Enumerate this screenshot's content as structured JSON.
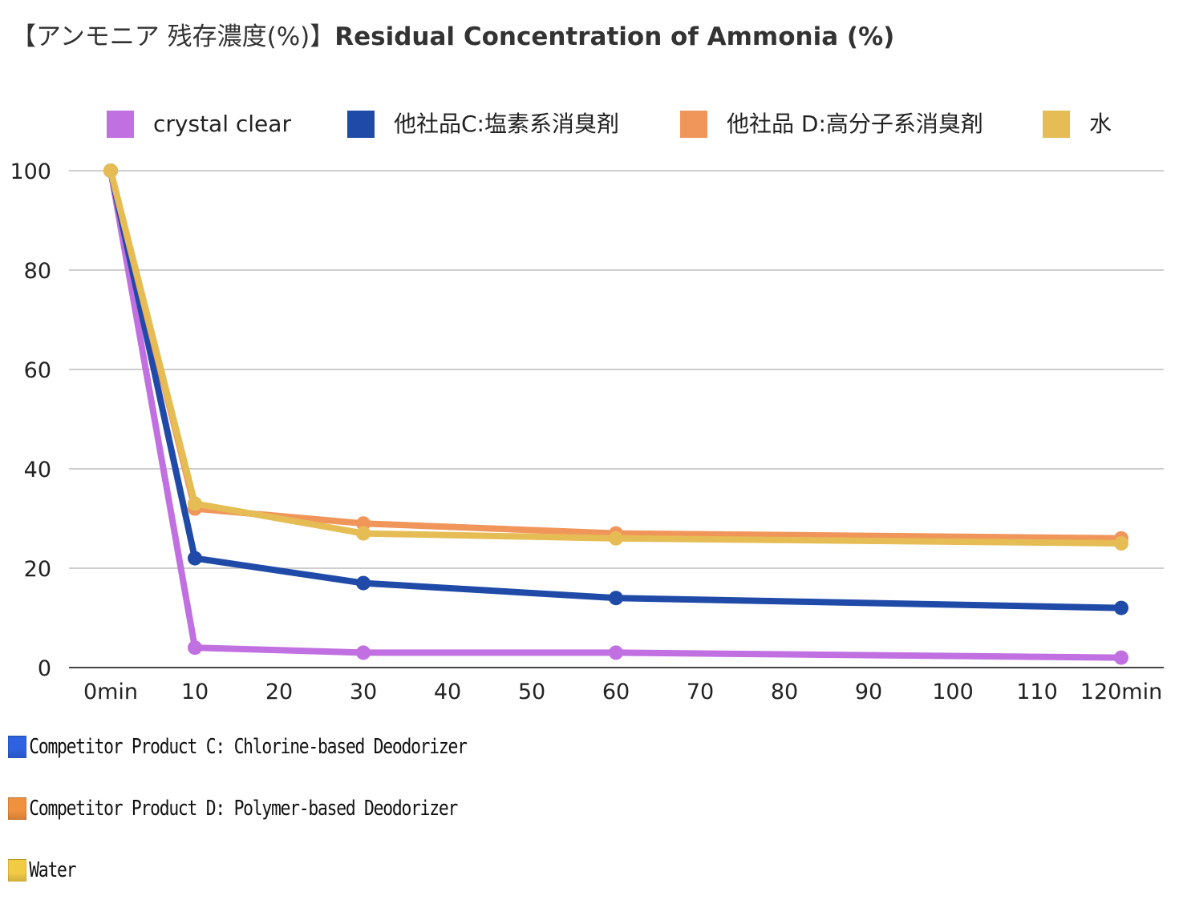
{
  "title": {
    "jp": "【アンモニア 残存濃度(%)】",
    "en": "Residual Concentration of Ammonia (%)"
  },
  "chart_data": {
    "type": "line",
    "title": "【アンモニア 残存濃度(%)】Residual Concentration of Ammonia (%)",
    "x": [
      0,
      10,
      30,
      60,
      120
    ],
    "xlim": [
      0,
      120
    ],
    "x_tick_values": [
      0,
      10,
      20,
      30,
      40,
      50,
      60,
      70,
      80,
      90,
      100,
      110,
      120
    ],
    "x_tick_labels": [
      "0min",
      "10",
      "20",
      "30",
      "40",
      "50",
      "60",
      "70",
      "80",
      "90",
      "100",
      "110",
      "120min"
    ],
    "ylim": [
      0,
      100
    ],
    "y_tick_values": [
      0,
      20,
      40,
      60,
      80,
      100
    ],
    "y_tick_labels": [
      "0",
      "20",
      "40",
      "60",
      "80",
      "100"
    ],
    "grid": true,
    "legend_position": "top",
    "series": [
      {
        "name": "crystal clear",
        "color": "#c070e0",
        "values": [
          100,
          4,
          3,
          3,
          2
        ]
      },
      {
        "name": "他社品C:塩素系消臭剤",
        "color": "#1f4aa8",
        "values": [
          100,
          22,
          17,
          14,
          12
        ]
      },
      {
        "name": "他社品 D:高分子系消臭剤",
        "color": "#f0965a",
        "values": [
          100,
          32,
          29,
          27,
          26
        ]
      },
      {
        "name": "水",
        "color": "#e6bd55",
        "values": [
          100,
          33,
          27,
          26,
          25
        ]
      }
    ]
  },
  "notes": [
    {
      "text": "Competitor Product C: Chlorine-based Deodorizer",
      "color": "#2f62e0"
    },
    {
      "text": "Competitor Product D: Polymer-based Deodorizer",
      "color": "#f0913f"
    },
    {
      "text": "Water",
      "color": "#f2cb45"
    }
  ]
}
